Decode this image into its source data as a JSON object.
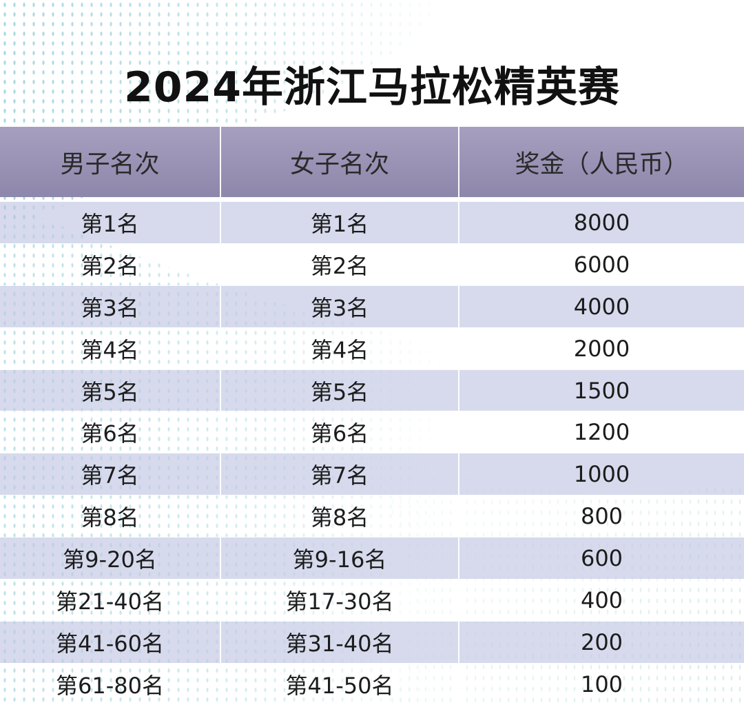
{
  "title": "2024年浙江马拉松精英赛",
  "table": {
    "headers": [
      "男子名次",
      "女子名次",
      "奖金（人民币）"
    ],
    "rows": [
      [
        "第1名",
        "第1名",
        "8000"
      ],
      [
        "第2名",
        "第2名",
        "6000"
      ],
      [
        "第3名",
        "第3名",
        "4000"
      ],
      [
        "第4名",
        "第4名",
        "2000"
      ],
      [
        "第5名",
        "第5名",
        "1500"
      ],
      [
        "第6名",
        "第6名",
        "1200"
      ],
      [
        "第7名",
        "第7名",
        "1000"
      ],
      [
        "第8名",
        "第8名",
        "800"
      ],
      [
        "第9-20名",
        "第9-16名",
        "600"
      ],
      [
        "第21-40名",
        "第17-30名",
        "400"
      ],
      [
        "第41-60名",
        "第31-40名",
        "200"
      ],
      [
        "第61-80名",
        "第41-50名",
        "100"
      ]
    ]
  },
  "colors": {
    "header_bg": "#9a93b5",
    "row_shaded": "#c6cce4",
    "dot_pattern": "#5fb8c4"
  }
}
